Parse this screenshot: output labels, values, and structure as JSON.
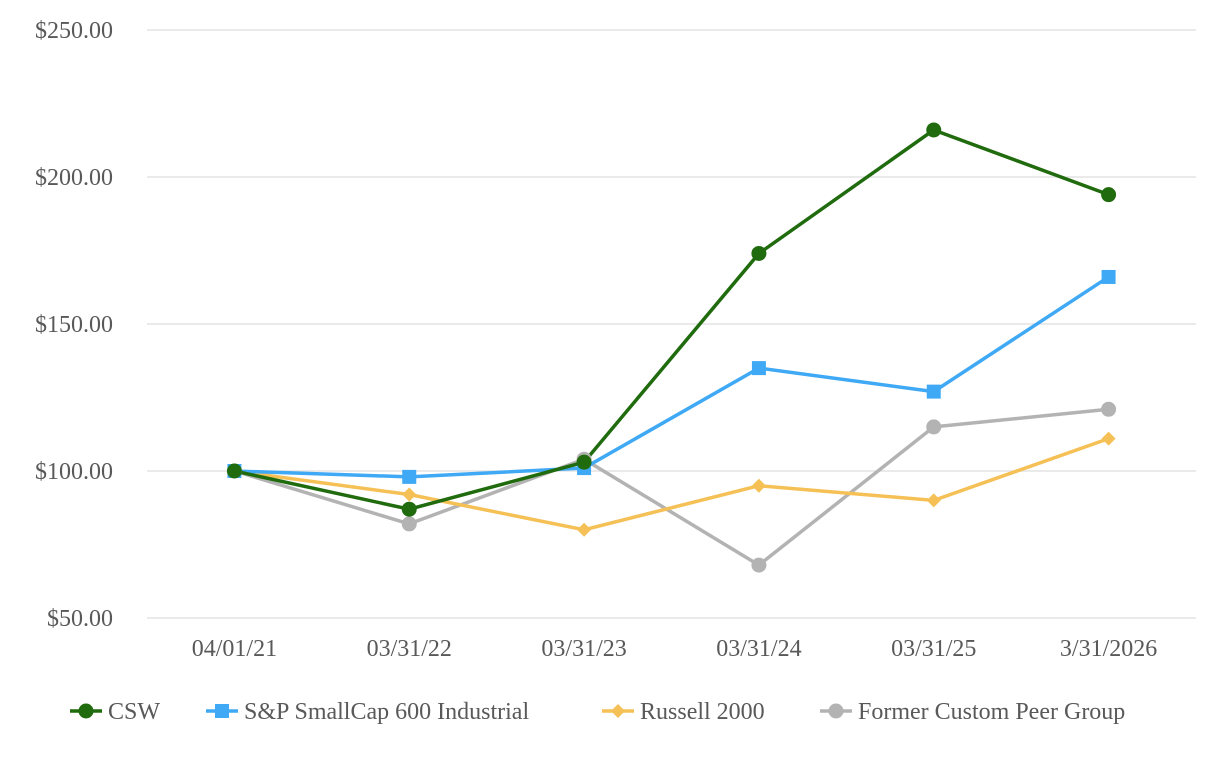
{
  "chart_data": {
    "type": "line",
    "title": "",
    "xlabel": "",
    "ylabel": "",
    "categories": [
      "04/01/21",
      "03/31/22",
      "03/31/23",
      "03/31/24",
      "03/31/25",
      "3/31/2026"
    ],
    "ylim": [
      50,
      250
    ],
    "yticks": [
      50,
      100,
      150,
      200,
      250
    ],
    "ytick_labels": [
      "$50.00",
      "$100.00",
      "$150.00",
      "$200.00",
      "$250.00"
    ],
    "grid": true,
    "legend_position": "bottom",
    "series": [
      {
        "name": "CSW",
        "color": "#1f6b0d",
        "marker": "circle",
        "values": [
          100,
          87,
          103,
          174,
          216,
          194
        ]
      },
      {
        "name": "S&P SmallCap 600 Industrial",
        "color": "#3fa9f5",
        "marker": "square",
        "values": [
          100,
          98,
          101,
          135,
          127,
          166
        ]
      },
      {
        "name": "Russell 2000",
        "color": "#f5c055",
        "marker": "diamond",
        "values": [
          100,
          92,
          80,
          95,
          90,
          111
        ]
      },
      {
        "name": "Former Custom Peer Group",
        "color": "#b3b3b3",
        "marker": "circle",
        "values": [
          100,
          82,
          104,
          68,
          115,
          121
        ]
      }
    ]
  }
}
